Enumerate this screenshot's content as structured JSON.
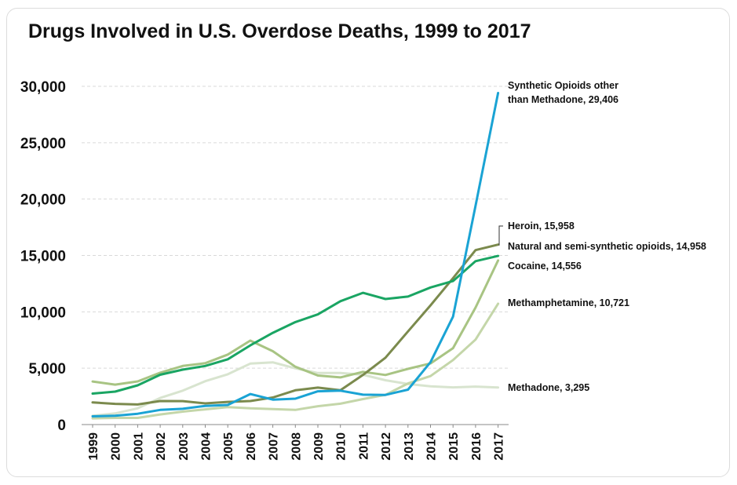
{
  "chart_data": {
    "type": "line",
    "title": "Drugs Involved in U.S. Overdose Deaths, 1999 to 2017",
    "xlabel": "",
    "ylabel": "",
    "ylim": [
      0,
      30000
    ],
    "yticks": [
      0,
      5000,
      10000,
      15000,
      20000,
      25000,
      30000
    ],
    "ytick_labels": [
      "0",
      "5,000",
      "10,000",
      "15,000",
      "20,000",
      "25,000",
      "30,000"
    ],
    "grid": true,
    "categories": [
      "1999",
      "2000",
      "2001",
      "2002",
      "2003",
      "2004",
      "2005",
      "2006",
      "2007",
      "2008",
      "2009",
      "2010",
      "2011",
      "2012",
      "2013",
      "2014",
      "2015",
      "2016",
      "2017"
    ],
    "series": [
      {
        "name": "Synthetic Opioids other than Methadone",
        "label_lines": [
          "Synthetic Opioids other",
          "than Methadone, 29,406"
        ],
        "color": "#1aa3d4",
        "values": [
          730,
          780,
          960,
          1300,
          1400,
          1660,
          1740,
          2710,
          2210,
          2300,
          2950,
          3010,
          2650,
          2630,
          3100,
          5540,
          9580,
          19410,
          29406
        ]
      },
      {
        "name": "Heroin",
        "label_lines": [
          "Heroin, 15,958"
        ],
        "color": "#7b8a4d",
        "values": [
          1960,
          1840,
          1780,
          2090,
          2080,
          1880,
          2010,
          2090,
          2400,
          3040,
          3280,
          3040,
          4400,
          5930,
          8260,
          10570,
          12990,
          15470,
          15958
        ]
      },
      {
        "name": "Natural and semi-synthetic opioids",
        "label_lines": [
          "Natural and semi-synthetic opioids, 14,958"
        ],
        "color": "#1aa563",
        "values": [
          2750,
          2920,
          3480,
          4420,
          4870,
          5200,
          5790,
          7020,
          8140,
          9090,
          9770,
          10940,
          11690,
          11140,
          11350,
          12160,
          12730,
          14490,
          14958
        ]
      },
      {
        "name": "Cocaine",
        "label_lines": [
          "Cocaine, 14,556"
        ],
        "color": "#a8c483",
        "values": [
          3820,
          3540,
          3830,
          4600,
          5200,
          5440,
          6210,
          7450,
          6510,
          5130,
          4350,
          4180,
          4680,
          4400,
          4940,
          5420,
          6780,
          10380,
          14556
        ]
      },
      {
        "name": "Methamphetamine",
        "label_lines": [
          "Methamphetamine, 10,721"
        ],
        "color": "#c4d6a9",
        "values": [
          550,
          590,
          590,
          900,
          1150,
          1350,
          1550,
          1440,
          1380,
          1300,
          1630,
          1850,
          2260,
          2640,
          3650,
          4300,
          5720,
          7540,
          10721
        ]
      },
      {
        "name": "Methadone",
        "label_lines": [
          "Methadone, 3,295"
        ],
        "color": "#d8e4cf",
        "values": [
          780,
          990,
          1440,
          2360,
          3010,
          3850,
          4460,
          5410,
          5520,
          4990,
          4570,
          4580,
          4420,
          3930,
          3600,
          3400,
          3300,
          3370,
          3295
        ]
      }
    ]
  }
}
